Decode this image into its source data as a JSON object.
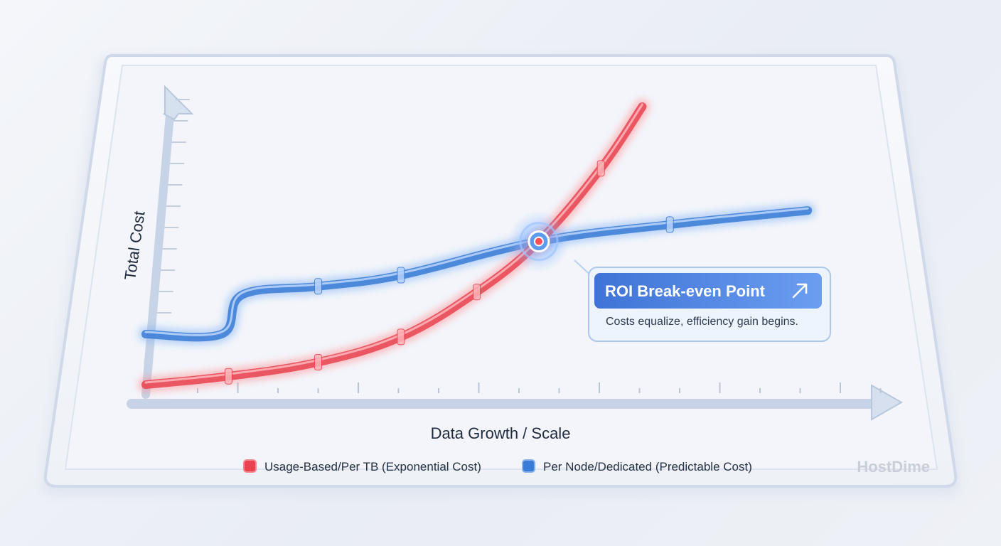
{
  "chart_data": {
    "type": "line",
    "xlabel": "Data Growth / Scale",
    "ylabel": "Total Cost",
    "grid": false,
    "legend_position": "bottom",
    "xlim": [
      0,
      1
    ],
    "ylim": [
      0,
      1
    ],
    "series": [
      {
        "name": "Usage-Based/Per TB (Exponential Cost)",
        "color": "#e8434f",
        "x": [
          0,
          0.12,
          0.25,
          0.37,
          0.48,
          0.57,
          0.66,
          0.72
        ],
        "y": [
          0.01,
          0.04,
          0.09,
          0.18,
          0.34,
          0.52,
          0.78,
          1.0
        ]
      },
      {
        "name": "Per Node/Dedicated (Predictable Cost)",
        "color": "#3a7bd5",
        "x": [
          0,
          0.11,
          0.14,
          0.25,
          0.37,
          0.57,
          0.76,
          0.96
        ],
        "y": [
          0.19,
          0.19,
          0.33,
          0.36,
          0.4,
          0.52,
          0.58,
          0.63
        ]
      }
    ],
    "annotation": {
      "title": "ROI Break-even Point",
      "text": "Costs equalize, efficiency gain begins.",
      "x": 0.57,
      "y": 0.52
    }
  },
  "brand": {
    "name": "HostDime"
  },
  "icons": {
    "callout_arrow": "arrow-up-right-icon"
  }
}
